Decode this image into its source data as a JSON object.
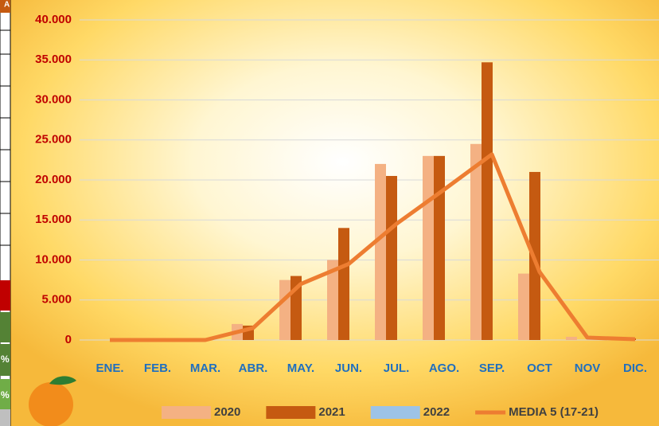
{
  "chart_data": {
    "type": "bar",
    "categories": [
      "ENE.",
      "FEB.",
      "MAR.",
      "ABR.",
      "MAY.",
      "JUN.",
      "JUL.",
      "AGO.",
      "SEP.",
      "OCT",
      "NOV",
      "DIC."
    ],
    "series": [
      {
        "name": "2020",
        "color": "#f4b183",
        "type": "bar",
        "values": [
          0,
          0,
          0,
          2000,
          7500,
          10000,
          22000,
          23000,
          24500,
          8300,
          400,
          0
        ]
      },
      {
        "name": "2021",
        "color": "#c55a11",
        "type": "bar",
        "values": [
          0,
          0,
          0,
          1800,
          8000,
          14000,
          20500,
          23000,
          34700,
          21000,
          0,
          200
        ]
      },
      {
        "name": "2022",
        "color": "#9dc3e6",
        "type": "bar",
        "values": [
          null,
          null,
          null,
          null,
          null,
          null,
          null,
          null,
          null,
          null,
          null,
          null
        ]
      },
      {
        "name": "MEDIA 5 (17-21)",
        "color": "#ed7d31",
        "type": "line",
        "values": [
          0,
          0,
          0,
          1500,
          7000,
          9500,
          14500,
          18800,
          23200,
          8500,
          300,
          100
        ]
      }
    ],
    "ylim": [
      0,
      40000
    ],
    "yticks": [
      0,
      {
        "value": 5000,
        "label": "5.000"
      },
      {
        "value": 10000,
        "label": "10.000"
      },
      {
        "value": 15000,
        "label": "15.000"
      },
      {
        "value": 20000,
        "label": "20.000"
      },
      {
        "value": 25000,
        "label": "25.000"
      },
      {
        "value": 30000,
        "label": "30.000"
      },
      {
        "value": 35000,
        "label": "35.000"
      },
      {
        "value": 40000,
        "label": "40.000"
      }
    ],
    "grid": true
  },
  "side_table": {
    "cells": [
      "A",
      "%",
      "%"
    ]
  }
}
